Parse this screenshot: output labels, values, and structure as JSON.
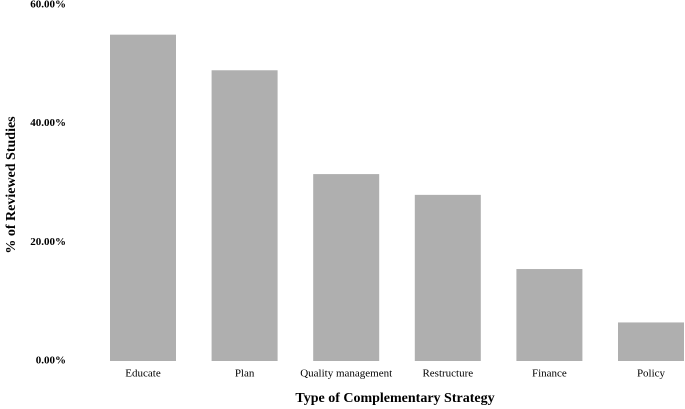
{
  "chart_data": {
    "type": "bar",
    "x_label": "Type of Complementary Strategy",
    "y_label": "% of Reviewed Studies",
    "categories": [
      "Educate",
      "Plan",
      "Quality management",
      "Restructure",
      "Finance",
      "Policy"
    ],
    "values": [
      55,
      49,
      31.5,
      28,
      15.5,
      6.5
    ],
    "color": "#afafaf",
    "ylim": [
      0,
      60
    ],
    "yticks": [
      {
        "value": 0,
        "label": "0.00%"
      },
      {
        "value": 20,
        "label": "20.00%"
      },
      {
        "value": 40,
        "label": "40.00%"
      },
      {
        "value": 60,
        "label": "60.00%"
      }
    ],
    "grid": false
  }
}
